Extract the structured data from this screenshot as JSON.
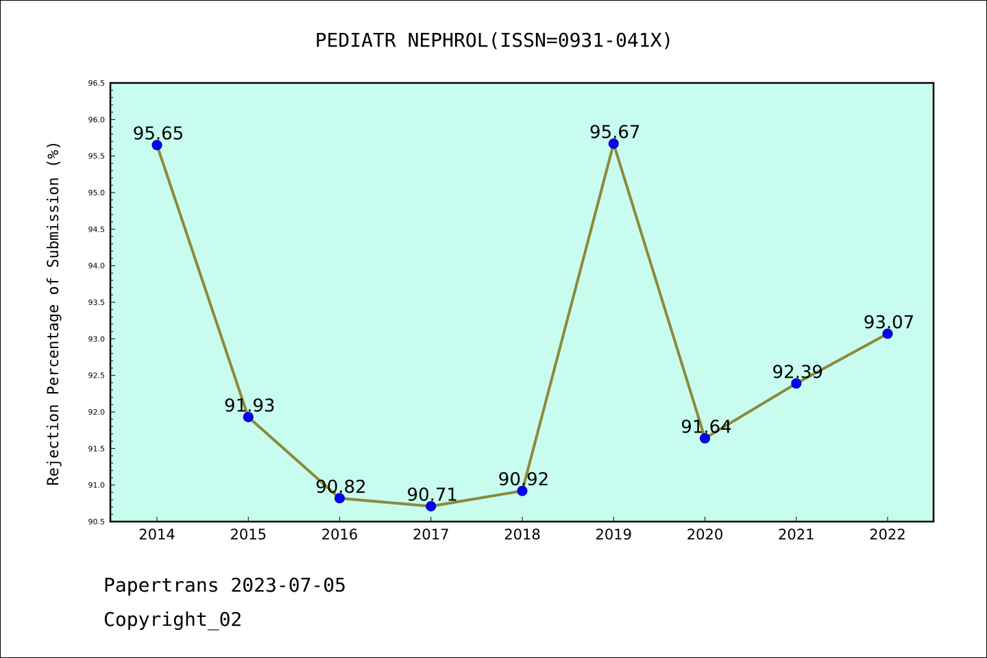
{
  "chart_data": {
    "type": "line",
    "title": "PEDIATR NEPHROL(ISSN=0931-041X)",
    "ylabel": "Rejection Percentage of Submission (%)",
    "xlabel": "",
    "categories": [
      "2014",
      "2015",
      "2016",
      "2017",
      "2018",
      "2019",
      "2020",
      "2021",
      "2022"
    ],
    "values": [
      95.65,
      91.93,
      90.82,
      90.71,
      90.92,
      95.67,
      91.64,
      92.39,
      93.07
    ],
    "data_labels": [
      "95.65",
      "91.93",
      "90.82",
      "90.71",
      "90.92",
      "95.67",
      "91.64",
      "92.39",
      "93.07"
    ],
    "ylim": [
      90.5,
      96.5
    ],
    "yticks": [
      "90.5",
      "91.0",
      "91.5",
      "92.0",
      "92.5",
      "93.0",
      "93.5",
      "94.0",
      "94.5",
      "95.0",
      "95.5",
      "96.0",
      "96.5"
    ],
    "grid": false,
    "legend": "none",
    "colors": {
      "plot_background": "#c8fcee",
      "line": "#8b8a3a",
      "marker": "#0000ff"
    }
  },
  "footer": {
    "source": "Papertrans 2023-07-05",
    "copyright": "Copyright_02"
  }
}
